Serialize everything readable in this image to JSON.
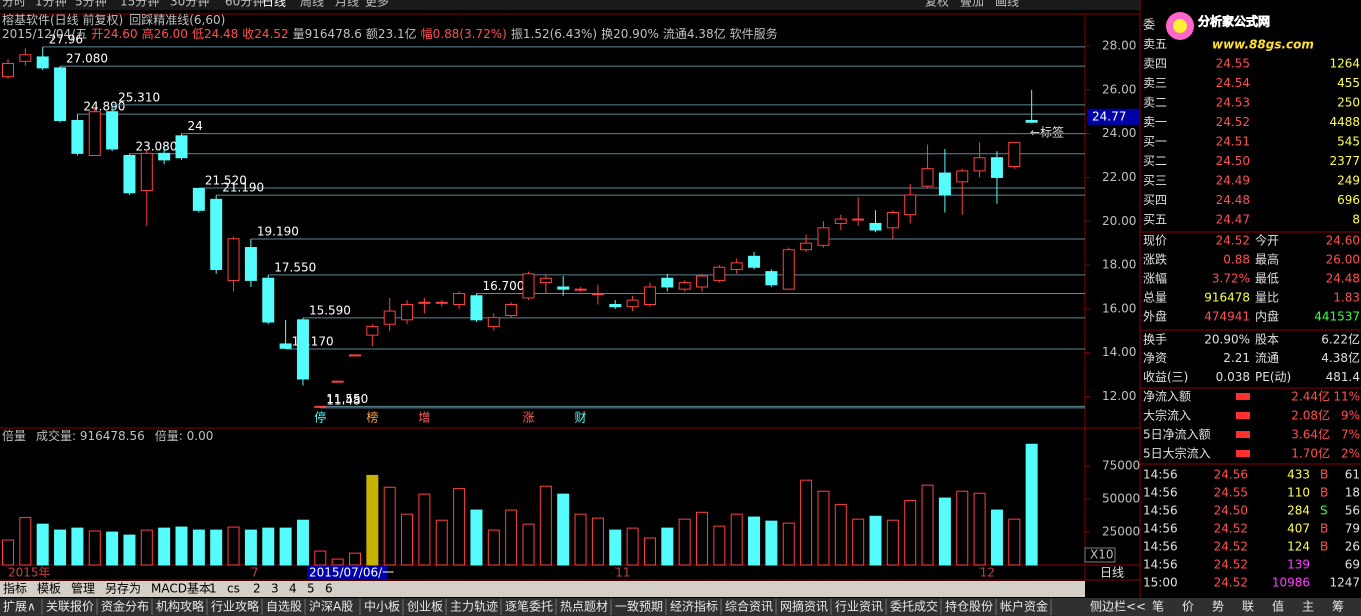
{
  "toolbar": [
    "分时",
    "1分钟",
    "5分钟",
    "15分钟",
    "30分钟",
    "60分钟",
    "日线",
    "周线",
    "月线",
    "更多",
    "复权",
    "叠加",
    "画线"
  ],
  "chart_data": [
    {
      "type": "candlestick",
      "title": "榕基软件(日线 前复权)",
      "indicator": "回踩精准线(6,60)",
      "info": [
        "2015/12/04/五",
        "开24.60",
        "高26.00",
        "低24.48",
        "收24.52",
        "量916478.6",
        "额23.1亿",
        "幅0.88(3.72%)",
        "振1.52(6.43%)",
        "换20.90%",
        "流通4.38亿",
        "软件服务"
      ],
      "info_colors": [
        "#c0c0c0",
        "#ff5050",
        "#ff5050",
        "#ff5050",
        "#ff5050",
        "#c0c0c0",
        "#c0c0c0",
        "#ff5050",
        "#c0c0c0",
        "#c0c0c0",
        "#c0c0c0",
        "#c0c0c0"
      ],
      "categories": [
        "2015年",
        null,
        null,
        null,
        null,
        null,
        null,
        null,
        null,
        null,
        null,
        null,
        null,
        null,
        "7",
        null,
        null,
        null,
        null,
        null,
        null,
        null,
        null,
        null,
        null,
        null,
        null,
        null,
        null,
        null,
        null,
        null,
        null,
        null,
        null,
        "11",
        null,
        null,
        null,
        null,
        null,
        null,
        null,
        null,
        null,
        null,
        null,
        null,
        null,
        null,
        null,
        null,
        null,
        null,
        null,
        null,
        "12",
        null,
        null,
        null
      ],
      "open": [
        26.6,
        27.3,
        27.5,
        27.0,
        24.6,
        23.0,
        25.0,
        23.0,
        21.4,
        23.1,
        23.9,
        21.5,
        21.0,
        17.3,
        18.8,
        17.4,
        14.4,
        15.5,
        11.55,
        12.7,
        13.9,
        14.8,
        15.3,
        15.5,
        16.3,
        16.3,
        16.2,
        16.6,
        15.2,
        15.7,
        16.5,
        17.2,
        17.0,
        16.9,
        16.7,
        16.2,
        16.1,
        16.2,
        17.4,
        16.9,
        17.0,
        17.3,
        17.8,
        18.4,
        17.7,
        16.9,
        18.7,
        18.9,
        19.9,
        20.1,
        19.9,
        19.7,
        20.3,
        21.6,
        22.2,
        21.8,
        22.3,
        22.9,
        22.5,
        24.6
      ],
      "high": [
        27.4,
        27.9,
        27.96,
        27.08,
        24.89,
        25.2,
        25.31,
        23.08,
        23.3,
        23.4,
        24.0,
        21.52,
        21.19,
        19.3,
        19.19,
        17.55,
        15.5,
        15.59,
        11.55,
        12.7,
        13.9,
        15.3,
        16.5,
        16.4,
        16.5,
        16.4,
        16.8,
        16.7,
        15.8,
        16.3,
        17.7,
        17.6,
        17.5,
        17.0,
        17.1,
        16.4,
        16.6,
        17.2,
        17.6,
        17.3,
        17.6,
        18.0,
        18.3,
        18.6,
        17.8,
        18.8,
        19.4,
        20.0,
        20.3,
        21.1,
        20.5,
        20.5,
        21.7,
        23.5,
        23.3,
        22.4,
        23.6,
        23.2,
        23.6,
        26.0
      ],
      "low": [
        26.5,
        27.1,
        26.9,
        24.5,
        23.0,
        23.0,
        23.2,
        21.2,
        19.8,
        22.6,
        22.8,
        20.4,
        17.6,
        16.8,
        17.0,
        15.3,
        14.17,
        12.5,
        11.48,
        12.7,
        13.9,
        14.3,
        15.0,
        15.3,
        15.8,
        16.1,
        16.0,
        15.4,
        15.0,
        15.6,
        16.4,
        16.7,
        16.6,
        16.8,
        16.2,
        16.0,
        15.9,
        16.1,
        16.8,
        16.8,
        16.8,
        17.2,
        17.6,
        17.8,
        17.0,
        16.9,
        18.6,
        18.8,
        19.6,
        19.8,
        19.5,
        19.2,
        19.9,
        21.5,
        20.4,
        20.3,
        22.0,
        20.8,
        22.4,
        24.48
      ],
      "close": [
        27.2,
        27.6,
        27.0,
        24.6,
        23.1,
        25.0,
        23.3,
        21.3,
        23.1,
        22.8,
        22.9,
        20.5,
        17.8,
        19.2,
        17.3,
        15.4,
        14.2,
        12.8,
        11.55,
        12.7,
        13.9,
        15.2,
        15.9,
        16.2,
        16.3,
        16.3,
        16.7,
        15.5,
        15.6,
        16.2,
        17.6,
        17.4,
        16.9,
        16.9,
        16.7,
        16.1,
        16.4,
        17.0,
        17.0,
        17.2,
        17.5,
        17.9,
        18.1,
        17.9,
        17.1,
        18.7,
        19.0,
        19.7,
        20.1,
        20.1,
        19.6,
        20.4,
        21.2,
        22.4,
        21.2,
        22.3,
        22.9,
        22.0,
        23.6,
        24.52
      ],
      "up_color": "#ff4040",
      "down_color": "#54fcfc",
      "level_color": "#5f8796",
      "ylim": [
        10.7,
        29.46
      ],
      "yticks": [
        {
          "value": 12,
          "label": "12.00"
        },
        {
          "value": 14,
          "label": "14.00"
        },
        {
          "value": 16,
          "label": "16.00"
        },
        {
          "value": 18,
          "label": "18.00"
        },
        {
          "value": 20,
          "label": "20.00"
        },
        {
          "value": 22,
          "label": "22.00"
        },
        {
          "value": 24,
          "label": "24.00"
        },
        {
          "value": 26,
          "label": "26.00"
        },
        {
          "value": 28,
          "label": "28.00"
        }
      ],
      "levels": [
        {
          "label": "27.96",
          "value": 27.96,
          "index": 2
        },
        {
          "label": "27.080",
          "value": 27.08,
          "index": 3
        },
        {
          "label": "24.890",
          "value": 24.89,
          "index": 4
        },
        {
          "label": "25.310",
          "value": 25.31,
          "index": 6
        },
        {
          "label": "23.080",
          "value": 23.08,
          "index": 7
        },
        {
          "label": "24",
          "value": 24,
          "index": 10
        },
        {
          "label": "21.520",
          "value": 21.52,
          "index": 11
        },
        {
          "label": "21.190",
          "value": 21.19,
          "index": 12
        },
        {
          "label": "19.190",
          "value": 19.19,
          "index": 14
        },
        {
          "label": "17.550",
          "value": 17.55,
          "index": 15
        },
        {
          "label": "14.170",
          "value": 14.17,
          "index": 16
        },
        {
          "label": "15.590",
          "value": 15.59,
          "index": 17
        },
        {
          "label": "11.550",
          "value": 11.55,
          "index": 18
        },
        {
          "label": "11.48",
          "value": 11.48,
          "index": 18
        },
        {
          "label": "16.700",
          "value": 16.7,
          "index": 27
        }
      ],
      "events": [
        {
          "label": "停",
          "index": 18,
          "color": "#54fcfc"
        },
        {
          "label": "榜",
          "index": 21,
          "color": "#ffa040"
        },
        {
          "label": "增",
          "index": 24,
          "color": "#ff6060"
        },
        {
          "label": "涨",
          "index": 30,
          "color": "#ff6060"
        },
        {
          "label": "财",
          "index": 33,
          "color": "#54fcfc"
        }
      ],
      "cursor_price": 24.77,
      "cursor_date": "2015/07/06/一",
      "cursor_index": 17,
      "tag": "←标签"
    },
    {
      "type": "bar",
      "title": "倍量",
      "info": [
        "成交量: 916478.56",
        "倍量: 0.00"
      ],
      "values": [
        19000,
        36000,
        31000,
        26500,
        28000,
        25800,
        25000,
        22700,
        26500,
        28000,
        28800,
        26500,
        26500,
        28800,
        26500,
        28000,
        28000,
        34000,
        10600,
        4500,
        9000,
        68000,
        59000,
        38600,
        53800,
        34000,
        58000,
        41700,
        26500,
        41700,
        31000,
        59800,
        53800,
        38600,
        35600,
        26500,
        28000,
        20500,
        28000,
        34800,
        40000,
        29500,
        38600,
        36400,
        33300,
        31800,
        64400,
        56000,
        46000,
        34800,
        37000,
        34000,
        49000,
        60600,
        50800,
        56000,
        54500,
        41700,
        34800,
        91647.856
      ],
      "highlight": {
        "index": 21,
        "color": "#c8b400"
      },
      "ylim": [
        0,
        104000
      ],
      "yticks": [
        25000,
        50000,
        75000
      ],
      "unit": "X10",
      "period": "日线"
    }
  ],
  "side_panel": {
    "logo": {
      "name": "分析家公式网",
      "url": "www.88gs.com"
    },
    "order_book": [
      {
        "label": "委"
      },
      {
        "label": "卖五"
      },
      {
        "label": "卖四",
        "price": "24.55",
        "volume": "1264"
      },
      {
        "label": "卖三",
        "price": "24.54",
        "volume": "455"
      },
      {
        "label": "卖二",
        "price": "24.53",
        "volume": "250"
      },
      {
        "label": "卖一",
        "price": "24.52",
        "volume": "4488"
      },
      {
        "label": "买一",
        "price": "24.51",
        "volume": "545"
      },
      {
        "label": "买二",
        "price": "24.50",
        "volume": "2377"
      },
      {
        "label": "买三",
        "price": "24.49",
        "volume": "249"
      },
      {
        "label": "买四",
        "price": "24.48",
        "volume": "696"
      },
      {
        "label": "买五",
        "price": "24.47",
        "volume": "8"
      }
    ],
    "quotes": [
      {
        "cells": [
          "现价",
          "24.52",
          "今开",
          "24.60"
        ],
        "colors": [
          "#ff5050",
          "#ff5050"
        ]
      },
      {
        "cells": [
          "涨跌",
          "0.88",
          "最高",
          "26.00"
        ],
        "colors": [
          "#ff5050",
          "#ff5050"
        ]
      },
      {
        "cells": [
          "涨幅",
          "3.72%",
          "最低",
          "24.48"
        ],
        "colors": [
          "#ff5050",
          "#ff5050"
        ]
      },
      {
        "cells": [
          "总量",
          "916478",
          "量比",
          "1.83"
        ],
        "colors": [
          "#ffff54",
          "#ff5050"
        ]
      },
      {
        "cells": [
          "外盘",
          "474941",
          "内盘",
          "441537"
        ],
        "colors": [
          "#ff5050",
          "#40ff40"
        ]
      },
      {
        "cells": [
          "换手",
          "20.90%",
          "股本",
          "6.22亿"
        ],
        "colors": [
          "#e0e0e0",
          "#e0e0e0"
        ]
      },
      {
        "cells": [
          "净资",
          "2.21",
          "流通",
          "4.38亿"
        ],
        "colors": [
          "#e0e0e0",
          "#e0e0e0"
        ]
      },
      {
        "cells": [
          "收益(三)",
          "0.038",
          "PE(动)",
          "481.4"
        ],
        "colors": [
          "#e0e0e0",
          "#e0e0e0"
        ]
      }
    ],
    "flows": [
      {
        "label": "净流入额",
        "amount": "2.44亿",
        "pct": "11%"
      },
      {
        "label": "大宗流入",
        "amount": "2.08亿",
        "pct": "9%"
      },
      {
        "label": "5日净流入额",
        "amount": "3.64亿",
        "pct": "7%"
      },
      {
        "label": "5日大宗流入",
        "amount": "1.70亿",
        "pct": "2%"
      }
    ],
    "ticks": [
      {
        "time": "14:56",
        "price": "24.56",
        "volume": "433",
        "side": "B",
        "last": "61"
      },
      {
        "time": "14:56",
        "price": "24.55",
        "volume": "110",
        "side": "B",
        "last": "18"
      },
      {
        "time": "14:56",
        "price": "24.50",
        "volume": "284",
        "side": "S",
        "last": "56"
      },
      {
        "time": "14:56",
        "price": "24.52",
        "volume": "407",
        "side": "B",
        "last": "79"
      },
      {
        "time": "14:56",
        "price": "24.52",
        "volume": "124",
        "side": "B",
        "last": "26"
      },
      {
        "time": "14:56",
        "price": "24.52",
        "volume": "139",
        "last": "69"
      },
      {
        "time": "15:00",
        "price": "24.52",
        "volume": "10986",
        "last": "1247"
      }
    ]
  },
  "tabs": [
    "指标",
    "模板",
    "管理",
    "另存为",
    "MACD基本",
    "1",
    "cs",
    "2",
    "3",
    "4",
    "5",
    "6"
  ],
  "nav": [
    "扩展∧",
    "关联报价",
    "资金分布",
    "机构攻略",
    "行业攻略",
    "自选股",
    "沪深A股",
    "中小板",
    "创业板",
    "主力轨迹",
    "逐笔委托",
    "热点题材",
    "一致预期",
    "经济指标",
    "综合资讯",
    "网摘资讯",
    "行业资讯",
    "委托成交",
    "持仓股份",
    "帐户资金"
  ],
  "sidebar": [
    "侧边栏<<",
    "笔",
    "价",
    "势",
    "联",
    "值",
    "主",
    "筹"
  ]
}
